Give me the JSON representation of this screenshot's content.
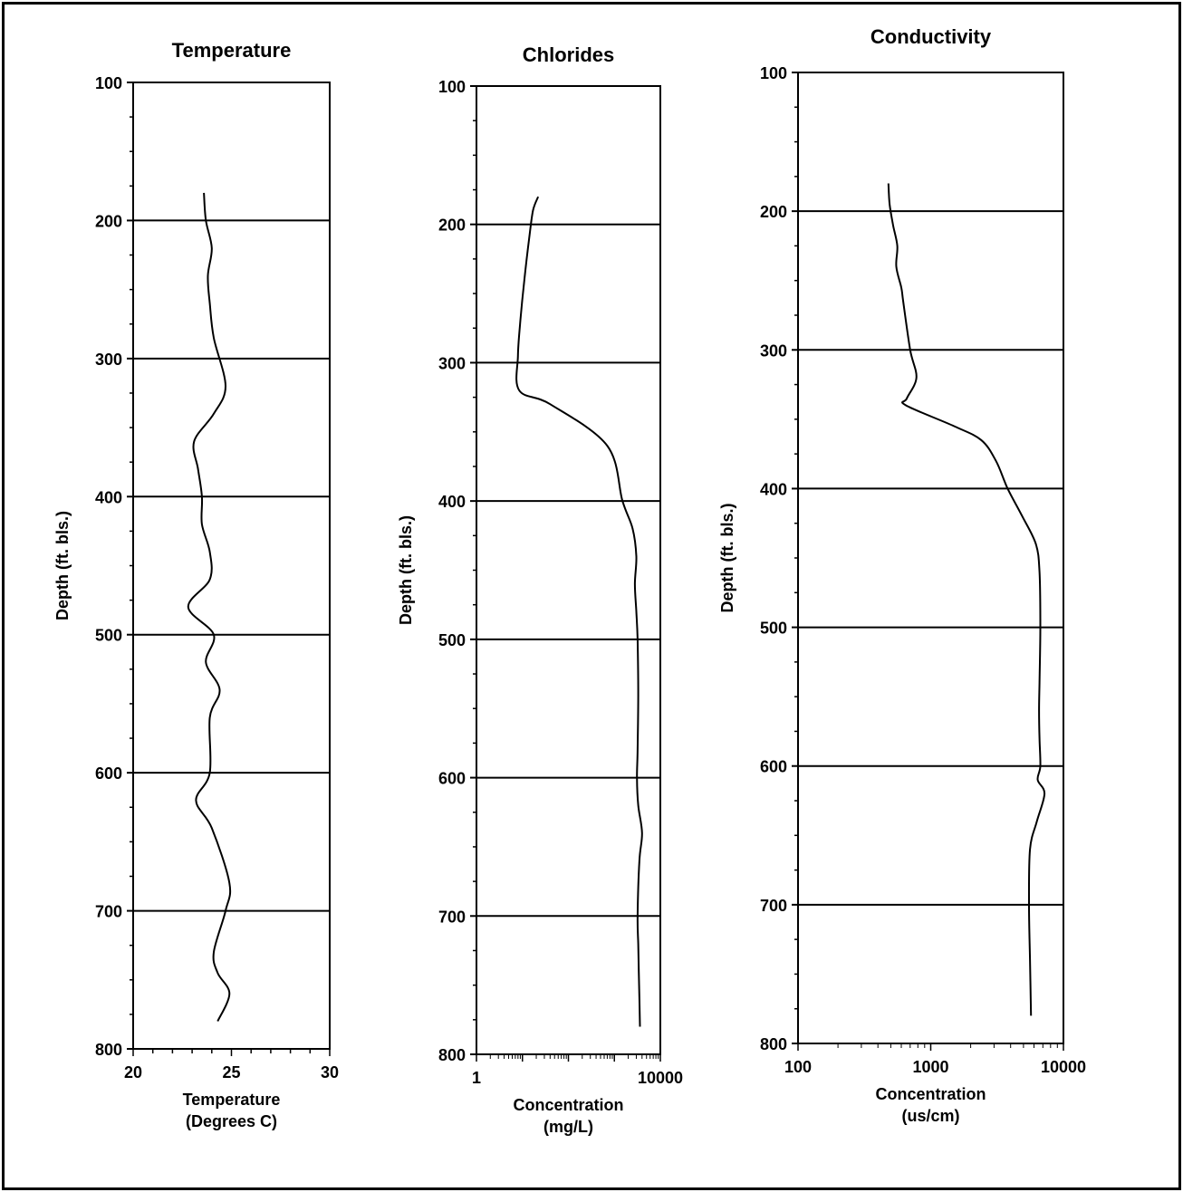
{
  "chart_data": [
    {
      "type": "line",
      "title": "Temperature",
      "xlabel": [
        "Temperature",
        "(Degrees C)"
      ],
      "ylabel": "Depth (ft. bls.)",
      "xscale": "linear",
      "xlim": [
        20,
        30
      ],
      "ylim": [
        100,
        800
      ],
      "y_inverted": true,
      "xticks": [
        "20",
        "25",
        "30"
      ],
      "yticks": [
        "100",
        "200",
        "300",
        "400",
        "500",
        "600",
        "700",
        "800"
      ],
      "grid": "horizontal",
      "series": [
        {
          "x": [
            23.6,
            23.7,
            24.0,
            23.8,
            23.9,
            24.1,
            24.7,
            24.1,
            23.1,
            23.3,
            23.5,
            23.5,
            23.9,
            23.9,
            22.8,
            24.1,
            23.7,
            24.4,
            23.9,
            23.9,
            23.2,
            24.0,
            24.9,
            24.7,
            24.1,
            24.3,
            24.9,
            24.3
          ],
          "y": [
            180,
            200,
            220,
            240,
            260,
            285,
            320,
            340,
            360,
            380,
            400,
            420,
            440,
            460,
            480,
            500,
            520,
            540,
            560,
            600,
            620,
            640,
            680,
            700,
            730,
            745,
            760,
            780
          ]
        }
      ]
    },
    {
      "type": "line",
      "title": "Chlorides",
      "xlabel": [
        "Concentration",
        "(mg/L)"
      ],
      "ylabel": "Depth (ft. bls.)",
      "xscale": "log",
      "xlim": [
        1,
        10000
      ],
      "ylim": [
        100,
        800
      ],
      "y_inverted": true,
      "xticks": [
        "1",
        "10000"
      ],
      "yticks": [
        "100",
        "200",
        "300",
        "400",
        "500",
        "600",
        "700",
        "800"
      ],
      "grid": "horizontal",
      "series": [
        {
          "x": [
            22,
            17,
            14,
            11,
            9,
            8,
            8.5,
            40,
            700,
            1500,
            2500,
            3000,
            2800,
            3000,
            3200,
            3300,
            3200,
            3100,
            3300,
            4000,
            3500,
            3200,
            3300,
            3400,
            3500,
            3600
          ],
          "y": [
            180,
            190,
            210,
            240,
            270,
            295,
            320,
            330,
            360,
            400,
            420,
            440,
            460,
            480,
            500,
            540,
            580,
            600,
            620,
            640,
            660,
            700,
            720,
            740,
            760,
            780
          ]
        }
      ]
    },
    {
      "type": "line",
      "title": "Conductivity",
      "xlabel": [
        "Concentration",
        "(us/cm)"
      ],
      "ylabel": "Depth (ft. bls.)",
      "xscale": "log",
      "xlim": [
        100,
        10000
      ],
      "ylim": [
        100,
        800
      ],
      "y_inverted": true,
      "xticks": [
        "100",
        "1000",
        "10000"
      ],
      "yticks": [
        "100",
        "200",
        "300",
        "400",
        "500",
        "600",
        "700",
        "800"
      ],
      "grid": "horizontal",
      "series": [
        {
          "x": [
            480,
            490,
            520,
            560,
            550,
            600,
            620,
            700,
            780,
            660,
            650,
            1500,
            2400,
            3100,
            3800,
            4900,
            6200,
            6600,
            6700,
            6600,
            6550,
            6600,
            6700,
            6400,
            7200,
            6300,
            5600,
            5500,
            5600,
            5700
          ],
          "y": [
            180,
            195,
            210,
            225,
            240,
            255,
            265,
            300,
            320,
            335,
            340,
            355,
            365,
            380,
            400,
            420,
            440,
            460,
            500,
            540,
            560,
            580,
            600,
            610,
            620,
            640,
            660,
            700,
            740,
            780
          ]
        }
      ]
    }
  ]
}
